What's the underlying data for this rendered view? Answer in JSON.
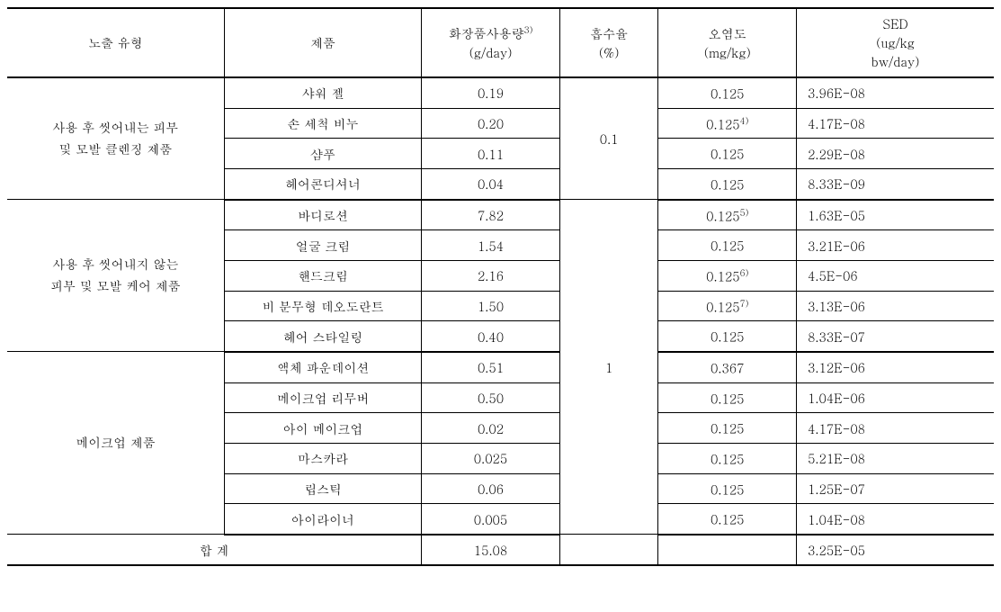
{
  "columns": [
    "노출 유형",
    "제품",
    "화장품사용량3)\n(g/day)",
    "흡수율\n(%)",
    "오염도\n(mg/kg)",
    "SED\n(ug/kg\nbw/day)"
  ],
  "column_widths": [
    "22%",
    "20%",
    "14%",
    "10%",
    "14%",
    "20%"
  ],
  "header_usage_label": "화장품사용량",
  "header_usage_sup": "3)",
  "header_usage_unit": "(g/day)",
  "header_absorption_label": "흡수율",
  "header_absorption_unit": "(%)",
  "header_contamination_label": "오염도",
  "header_contamination_unit": "(mg/kg)",
  "header_sed_label": "SED",
  "header_sed_unit1": "(ug/kg",
  "header_sed_unit2": "bw/day)",
  "header_type": "노출 유형",
  "header_product": "제품",
  "group1": {
    "type_label": "사용 후 씻어내는 피부\n및 모발 클렌징 제품",
    "type_line1": "사용 후 씻어내는 피부",
    "type_line2": "및 모발 클렌징 제품",
    "absorption": "0.1",
    "rows": [
      {
        "product": "샤워 젤",
        "usage": "0.19",
        "contamination": "0.125",
        "cont_sup": "",
        "sed": "3.96E-08"
      },
      {
        "product": "손 세척 비누",
        "usage": "0.20",
        "contamination": "0.125",
        "cont_sup": "4)",
        "sed": "4.17E-08"
      },
      {
        "product": "샴푸",
        "usage": "0.11",
        "contamination": "0.125",
        "cont_sup": "",
        "sed": "2.29E-08"
      },
      {
        "product": "헤어콘디셔너",
        "usage": "0.04",
        "contamination": "0.125",
        "cont_sup": "",
        "sed": "8.33E-09"
      }
    ]
  },
  "group2": {
    "type_label": "사용 후 씻어내지 않는\n피부 및 모발 케어 제품",
    "type_line1": "사용 후 씻어내지 않는",
    "type_line2": "피부 및 모발 케어 제품",
    "rows": [
      {
        "product": "바디로션",
        "usage": "7.82",
        "contamination": "0.125",
        "cont_sup": "5)",
        "sed": "1.63E-05"
      },
      {
        "product": "얼굴 크림",
        "usage": "1.54",
        "contamination": "0.125",
        "cont_sup": "",
        "sed": "3.21E-06"
      },
      {
        "product": "핸드크림",
        "usage": "2.16",
        "contamination": "0.125",
        "cont_sup": "6)",
        "sed": "4.5E-06"
      },
      {
        "product": "비 분무형 데오도란트",
        "usage": "1.50",
        "contamination": "0.125",
        "cont_sup": "7)",
        "sed": "3.13E-06"
      },
      {
        "product": "헤어 스타일링",
        "usage": "0.40",
        "contamination": "0.125",
        "cont_sup": "",
        "sed": "8.33E-07"
      }
    ]
  },
  "group3": {
    "type_label": "메이크업 제품",
    "absorption": "1",
    "rows": [
      {
        "product": "액체 파운데이션",
        "usage": "0.51",
        "contamination": "0.367",
        "cont_sup": "",
        "sed": "3.12E-06"
      },
      {
        "product": "메이크업 리무버",
        "usage": "0.50",
        "contamination": "0.125",
        "cont_sup": "",
        "sed": "1.04E-06"
      },
      {
        "product": "아이 메이크업",
        "usage": "0.02",
        "contamination": "0.125",
        "cont_sup": "",
        "sed": "4.17E-08"
      },
      {
        "product": "마스카라",
        "usage": "0.025",
        "contamination": "0.125",
        "cont_sup": "",
        "sed": "5.21E-08"
      },
      {
        "product": "립스틱",
        "usage": "0.06",
        "contamination": "0.125",
        "cont_sup": "",
        "sed": "1.25E-07"
      },
      {
        "product": "아이라이너",
        "usage": "0.005",
        "contamination": "0.125",
        "cont_sup": "",
        "sed": "1.04E-08"
      }
    ]
  },
  "total": {
    "label": "합 계",
    "usage": "15.08",
    "sed": "3.25E-05"
  },
  "colors": {
    "border": "#000000",
    "background": "#ffffff",
    "text": "#000000"
  },
  "font_size_pt": 11,
  "table_type": "table"
}
